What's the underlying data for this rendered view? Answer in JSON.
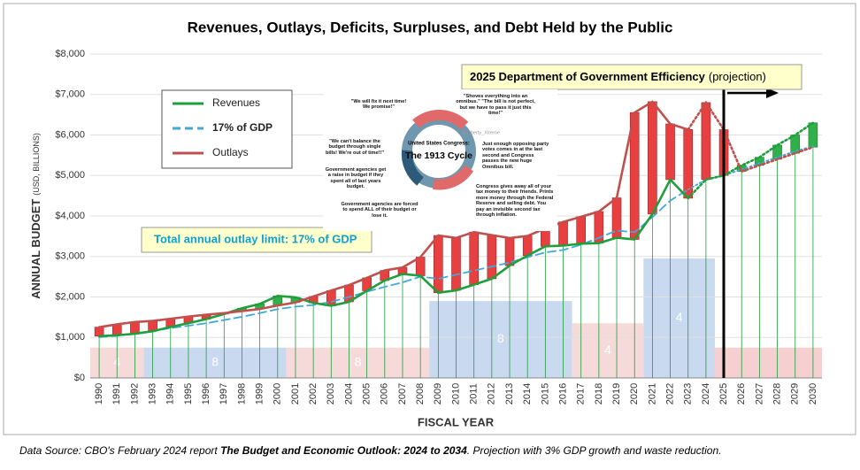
{
  "chart_data": {
    "type": "line",
    "title": "Revenues, Outlays, Deficits, Surpluses, and Debt Held by the Public",
    "y_label": "ANNUAL BUDGET",
    "y_label_unit": "(USD, BILLIONS)",
    "x_label": "FISCAL YEAR",
    "categories": [
      "1990",
      "1991",
      "1992",
      "1993",
      "1994",
      "1995",
      "1996",
      "1997",
      "1998",
      "1999",
      "2000",
      "2001",
      "2002",
      "2003",
      "2004",
      "2005",
      "2006",
      "2007",
      "2008",
      "2009",
      "2010",
      "2011",
      "2012",
      "2013",
      "2014",
      "2015",
      "2016",
      "2017",
      "2018",
      "2019",
      "2020",
      "2021",
      "2022",
      "2023",
      "2024",
      "2025",
      "2026",
      "2027",
      "2028",
      "2029",
      "2030"
    ],
    "series": [
      {
        "name": "Revenues",
        "color": "#1f9e3c",
        "values": [
          1032,
          1055,
          1091,
          1154,
          1259,
          1352,
          1453,
          1579,
          1722,
          1827,
          2025,
          1991,
          1853,
          1782,
          1880,
          2153,
          2406,
          2568,
          2524,
          2105,
          2163,
          2303,
          2450,
          2775,
          3022,
          3250,
          3268,
          3316,
          3330,
          3463,
          3421,
          4047,
          4897,
          4439,
          4900,
          5000,
          5250,
          5450,
          5750,
          6000,
          6300
        ]
      },
      {
        "name": "17% of GDP",
        "color": "#3fa9d8",
        "dashed": true,
        "values": [
          1010,
          1040,
          1100,
          1160,
          1230,
          1290,
          1350,
          1430,
          1510,
          1600,
          1700,
          1760,
          1800,
          1880,
          2000,
          2130,
          2250,
          2360,
          2500,
          2450,
          2550,
          2650,
          2750,
          2850,
          2980,
          3100,
          3160,
          3290,
          3460,
          3640,
          3600,
          3970,
          4380,
          4650,
          4900,
          5000,
          5150,
          5300,
          5450,
          5600,
          5720
        ]
      },
      {
        "name": "Outlays",
        "color": "#c0504d",
        "values": [
          1253,
          1324,
          1382,
          1409,
          1462,
          1516,
          1561,
          1601,
          1652,
          1702,
          1789,
          1863,
          2011,
          2160,
          2293,
          2472,
          2655,
          2729,
          2983,
          3518,
          3457,
          3603,
          3527,
          3455,
          3506,
          3692,
          3853,
          3982,
          4109,
          4447,
          6554,
          6822,
          6273,
          6135,
          6800,
          6130,
          5100,
          5250,
          5400,
          5550,
          5700
        ]
      }
    ],
    "deficit_color": "#e84040",
    "surplus_color": "#2fb04a",
    "ylim": [
      0,
      8000
    ],
    "yticks": [
      {
        "value": 0,
        "label": "$0"
      },
      {
        "value": 1000,
        "label": "$1,000"
      },
      {
        "value": 2000,
        "label": "$2,000"
      },
      {
        "value": 3000,
        "label": "$3,000"
      },
      {
        "value": 4000,
        "label": "$4,000"
      },
      {
        "value": 5000,
        "label": "$5,000"
      },
      {
        "value": 6000,
        "label": "$6,000"
      },
      {
        "value": 7000,
        "label": "$7,000"
      },
      {
        "value": 8000,
        "label": "$8,000"
      }
    ],
    "term_blocks": [
      {
        "label": "4",
        "start": "1990",
        "end": "1992",
        "height": 750,
        "color": "#f6d9d9"
      },
      {
        "label": "8",
        "start": "1993",
        "end": "2000",
        "height": 750,
        "color": "#c9daf0"
      },
      {
        "label": "8",
        "start": "2001",
        "end": "2008",
        "height": 750,
        "color": "#f6d9d9"
      },
      {
        "label": "8",
        "start": "2009",
        "end": "2016",
        "height": 1900,
        "color": "#c9daf0"
      },
      {
        "label": "4",
        "start": "2017",
        "end": "2020",
        "height": 1350,
        "color": "#f6d9d9"
      },
      {
        "label": "4",
        "start": "2021",
        "end": "2024",
        "height": 2950,
        "color": "#c9daf0"
      },
      {
        "start": "2025",
        "end": "2030",
        "height": 750,
        "color": "#f6d0d0"
      }
    ],
    "annotation_bold": "2025 Department of Government Efficiency",
    "annotation_rest": "(projection)",
    "limit_note": "Total annual outlay limit: 17% of GDP",
    "footer_prefix": "Data Source: CBO's February 2024 report ",
    "footer_bold": "The Budget and Economic Outlook: 2024 to 2034",
    "footer_suffix": ". Projection with 3% GDP growth and waste reduction.",
    "inset": {
      "center_top": "United States Congress:",
      "center_title": "The 1913 Cycle",
      "handle": "@Liberty_Xtreme",
      "notes": [
        "\"We will fix it next time! We promise!\"",
        "\"Shoves everything into an omnibus.\" \"The bill is not perfect, but we have to pass it just this time!\"",
        "\"We can't balance the budget through single bills! We're out of time!!\"",
        "Just enough opposing party votes comes in at the last second and Congress passes the new huge Omnibus bill.",
        "Government agencies get a raise in budget if they spent all of last years budget.",
        "Congress gives away all of your tax money to their friends. Prints more money through the Federal Reserve and selling debt. You pay an invisible second tax through inflation.",
        "Government agencies are forced to spend ALL of their budget or lose it."
      ]
    }
  }
}
